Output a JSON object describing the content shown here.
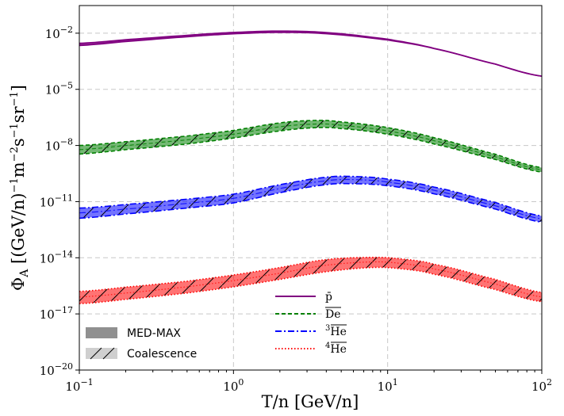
{
  "chart_data": {
    "type": "line",
    "xscale": "log",
    "yscale": "log",
    "xlim": [
      0.1,
      100
    ],
    "ylim": [
      1e-20,
      0.3
    ],
    "xlabel": "T/n [GeV/n]",
    "ylabel": "Φ_A [(GeV/n)^-1 m^-2 s^-1 sr^-1]",
    "xticks": [
      {
        "value": 0.1,
        "base": "10",
        "exp": "−1"
      },
      {
        "value": 1,
        "base": "10",
        "exp": "0"
      },
      {
        "value": 10,
        "base": "10",
        "exp": "1"
      },
      {
        "value": 100,
        "base": "10",
        "exp": "2"
      }
    ],
    "yticks": [
      {
        "value": 0.01,
        "base": "10",
        "exp": "−2"
      },
      {
        "value": 1e-05,
        "base": "10",
        "exp": "−5"
      },
      {
        "value": 1e-08,
        "base": "10",
        "exp": "−8"
      },
      {
        "value": 1e-11,
        "base": "10",
        "exp": "−11"
      },
      {
        "value": 1e-14,
        "base": "10",
        "exp": "−14"
      },
      {
        "value": 1e-17,
        "base": "10",
        "exp": "−17"
      },
      {
        "value": 1e-20,
        "base": "10",
        "exp": "−20"
      }
    ],
    "grid": true,
    "series": [
      {
        "name": "p̄",
        "color": "#800080",
        "style": "solid",
        "x": [
          0.1,
          0.2,
          0.5,
          1,
          2,
          4,
          10,
          20,
          50,
          100
        ],
        "y": [
          0.0025,
          0.004,
          0.007,
          0.01,
          0.012,
          0.01,
          0.0045,
          0.0015,
          0.00022,
          5e-05
        ],
        "band_lo": [
          0.0022,
          0.0036,
          0.0064,
          0.0092,
          0.011,
          0.0093,
          0.0043,
          0.0015,
          0.00022,
          5e-05
        ],
        "band_hi": [
          0.0029,
          0.0045,
          0.0077,
          0.011,
          0.013,
          0.0108,
          0.0048,
          0.00155,
          0.000225,
          5.1e-05
        ]
      },
      {
        "name": "De",
        "color": "#008000",
        "style": "dashed",
        "x": [
          0.1,
          0.2,
          0.5,
          1,
          2,
          3.5,
          5,
          10,
          20,
          50,
          100
        ],
        "y": [
          6e-09,
          1e-08,
          2e-08,
          4e-08,
          1e-07,
          1.4e-07,
          1.2e-07,
          6e-08,
          1.8e-08,
          2.5e-09,
          5e-10
        ],
        "band_lo": [
          3.5e-09,
          6e-09,
          1.2e-08,
          2.5e-08,
          6e-08,
          9e-08,
          8e-08,
          4e-08,
          1.2e-08,
          1.8e-09,
          3.8e-10
        ],
        "band_hi": [
          1e-08,
          1.6e-08,
          3.2e-08,
          6.4e-08,
          1.6e-07,
          2.2e-07,
          1.8e-07,
          9e-08,
          2.6e-08,
          3.4e-09,
          6.5e-10
        ]
      },
      {
        "name": "3He",
        "color": "#0000ff",
        "style": "dashdot",
        "x": [
          0.1,
          0.2,
          0.5,
          1,
          2,
          4,
          6,
          10,
          20,
          50,
          100
        ],
        "y": [
          2.5e-12,
          4e-12,
          8e-12,
          1.5e-11,
          5e-11,
          1.3e-10,
          1.5e-10,
          1.1e-10,
          4e-11,
          6e-12,
          1.2e-12
        ],
        "band_lo": [
          1.3e-12,
          2.2e-12,
          4.5e-12,
          8.5e-12,
          3e-11,
          8e-11,
          9e-11,
          7e-11,
          2.6e-11,
          4e-12,
          8e-13
        ],
        "band_hi": [
          4.5e-12,
          7e-12,
          1.35e-11,
          2.5e-11,
          8e-11,
          2e-10,
          2.2e-10,
          1.6e-10,
          6e-11,
          9e-12,
          1.7e-12
        ]
      },
      {
        "name": "4He",
        "color": "#ff0000",
        "style": "dotted",
        "x": [
          0.1,
          0.2,
          0.5,
          1,
          2,
          4,
          8,
          12,
          20,
          50,
          100
        ],
        "y": [
          8e-17,
          1.3e-16,
          2.8e-16,
          6e-16,
          1.5e-15,
          4e-15,
          6e-15,
          5e-15,
          2.5e-15,
          4e-16,
          8e-17
        ],
        "band_lo": [
          3.5e-17,
          6e-17,
          1.3e-16,
          2.8e-16,
          7e-16,
          1.8e-15,
          3e-15,
          2.6e-15,
          1.3e-15,
          2e-16,
          4.5e-17
        ],
        "band_hi": [
          1.6e-16,
          2.7e-16,
          5.6e-16,
          1.2e-15,
          3e-15,
          8e-15,
          1.05e-14,
          8.8e-15,
          4.5e-15,
          7e-16,
          1.4e-16
        ]
      }
    ],
    "legend_series": [
      {
        "label": "p̄",
        "color": "#800080",
        "style": "solid"
      },
      {
        "label": "De",
        "color": "#008000",
        "style": "dashed",
        "overline": true
      },
      {
        "label": "He",
        "sup": "3",
        "color": "#0000ff",
        "style": "dashdot",
        "overline": true
      },
      {
        "label": "He",
        "sup": "4",
        "color": "#ff0000",
        "style": "dotted",
        "overline": true
      }
    ],
    "legend_bands": [
      {
        "label": "MED-MAX",
        "kind": "solid"
      },
      {
        "label": "Coalescence",
        "kind": "hatched"
      }
    ],
    "legend_placement": "lower-center / lower-left"
  }
}
